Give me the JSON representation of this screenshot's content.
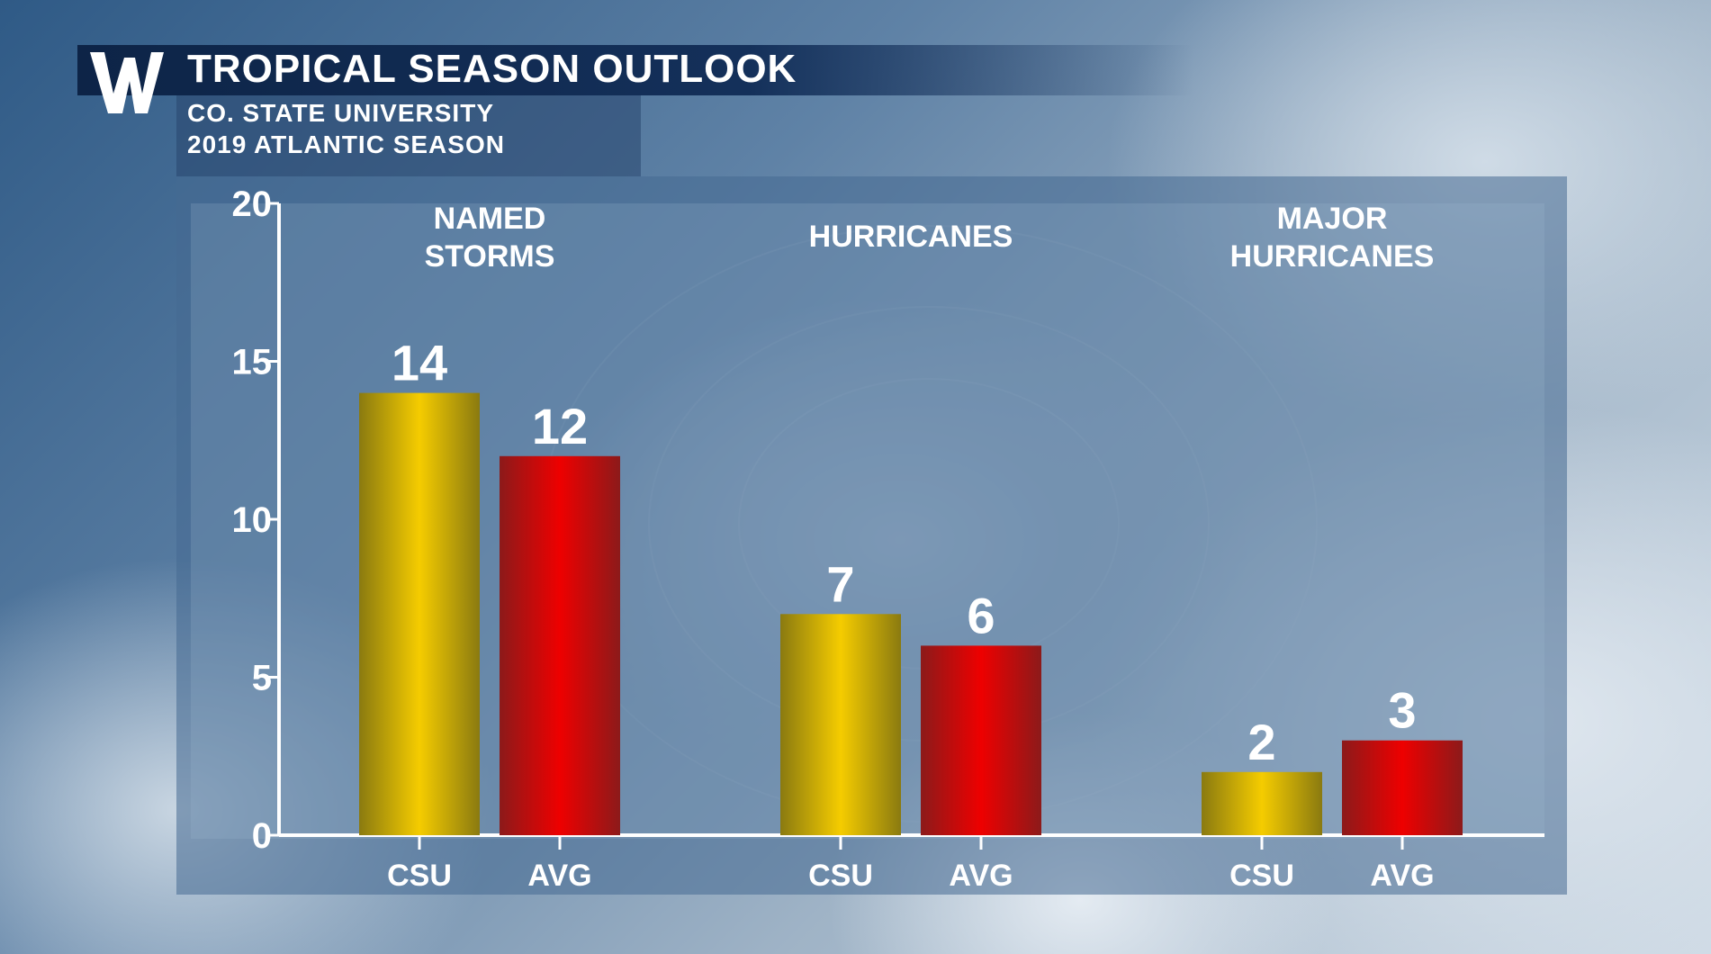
{
  "header": {
    "logo_text": "W",
    "title": "TROPICAL SEASON OUTLOOK",
    "subtitle_line1": "CO. STATE UNIVERSITY",
    "subtitle_line2": "2019 ATLANTIC SEASON"
  },
  "colors": {
    "csu": "#f5cc00",
    "avg": "#ee0000",
    "title_bg": "#0d2447",
    "axis": "#ffffff"
  },
  "chart_data": {
    "type": "bar",
    "title": "TROPICAL SEASON OUTLOOK",
    "groups": [
      {
        "label_lines": [
          "NAMED",
          "STORMS"
        ],
        "bars": [
          {
            "name": "CSU",
            "value": 14
          },
          {
            "name": "AVG",
            "value": 12
          }
        ]
      },
      {
        "label_lines": [
          "HURRICANES"
        ],
        "bars": [
          {
            "name": "CSU",
            "value": 7
          },
          {
            "name": "AVG",
            "value": 6
          }
        ]
      },
      {
        "label_lines": [
          "MAJOR",
          "HURRICANES"
        ],
        "bars": [
          {
            "name": "CSU",
            "value": 2
          },
          {
            "name": "AVG",
            "value": 3
          }
        ]
      }
    ],
    "yticks": [
      "0",
      "5",
      "10",
      "15",
      "20"
    ],
    "ylim": [
      0,
      20
    ],
    "grid": false,
    "legend": "none"
  }
}
